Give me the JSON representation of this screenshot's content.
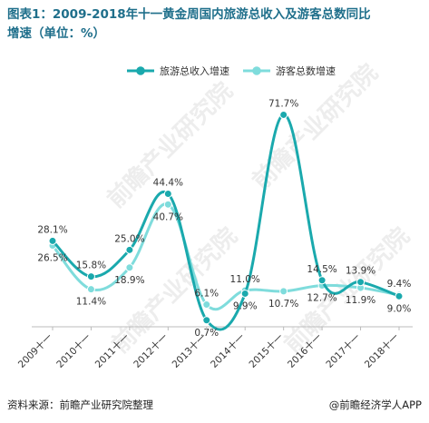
{
  "title_line1": "图表1：2009-2018年十一黄金周国内旅游总收入及游客总数同比",
  "title_line2": "增速（单位：%）",
  "watermarks": [
    "前瞻产业研究院",
    "前瞻产业研究院",
    "前瞻产业研究院",
    "前瞻产业研究院"
  ],
  "footer": {
    "source": "资料来源：前瞻产业研究院整理",
    "brand": "@前瞻经济学人APP"
  },
  "colors": {
    "series1": "#1aa9ad",
    "series2": "#7fdcdc",
    "title": "#1f6f8b"
  },
  "chart_data": {
    "type": "line",
    "smooth": true,
    "categories": [
      "2009十一",
      "2010十一",
      "2011十一",
      "2012十一",
      "2013十一",
      "2014十一",
      "2015十一",
      "2016十一",
      "2017十一",
      "2018十一"
    ],
    "series": [
      {
        "name": "旅游总收入增速",
        "values": [
          28.1,
          15.8,
          25.0,
          44.4,
          0.7,
          9.9,
          71.7,
          14.5,
          13.9,
          9.0
        ],
        "labels": [
          "28.1%",
          "15.8%",
          "25.0%",
          "44.4%",
          "0.7%",
          "9.9%",
          "71.7%",
          "14.5%",
          "13.9%",
          "9.0%"
        ]
      },
      {
        "name": "游客总数增速",
        "values": [
          26.5,
          11.4,
          18.9,
          40.7,
          6.1,
          11.0,
          10.7,
          12.7,
          11.9,
          9.4
        ],
        "labels": [
          "26.5%",
          "11.4%",
          "18.9%",
          "40.7%",
          "6.1%",
          "11.0%",
          "10.7%",
          "12.7%",
          "11.9%",
          "9.4%"
        ]
      }
    ],
    "ylim": [
      0,
      80
    ],
    "grid": false,
    "legend_position": "top"
  }
}
